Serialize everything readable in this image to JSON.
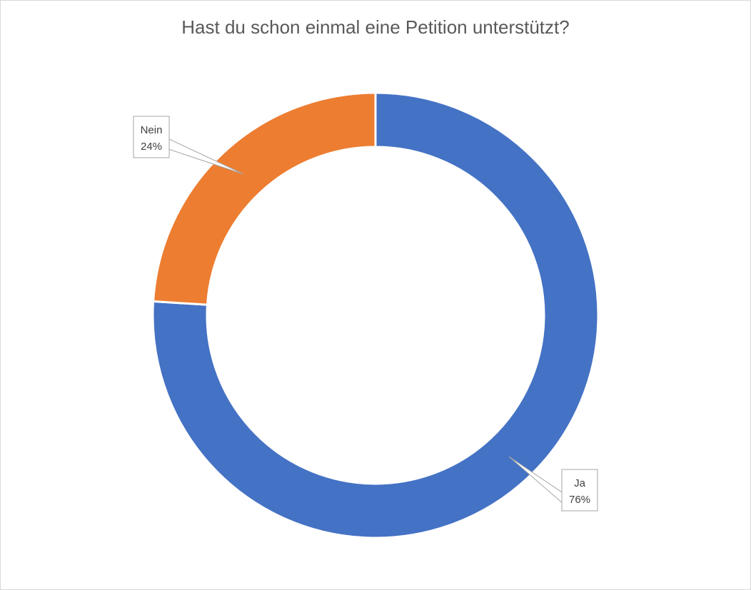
{
  "chart_data": {
    "type": "pie",
    "subtype": "donut",
    "title": "Hast du schon einmal eine Petition unterstützt?",
    "categories": [
      "Ja",
      "Nein"
    ],
    "values": [
      76,
      24
    ],
    "unit": "%",
    "data_labels": [
      {
        "category": "Ja",
        "percent": "76%"
      },
      {
        "category": "Nein",
        "percent": "24%"
      }
    ],
    "colors": [
      "#4472C4",
      "#ED7D31"
    ],
    "legend": "none"
  }
}
